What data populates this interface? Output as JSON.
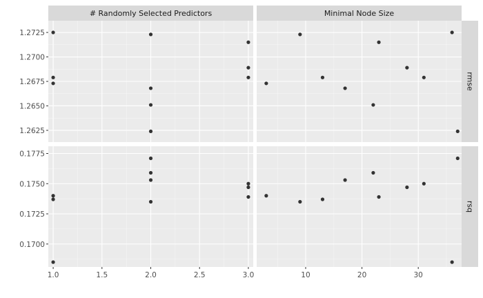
{
  "colors": {
    "panel_bg": "#ebebeb",
    "strip_bg": "#d9d9d9",
    "grid_major": "#ffffff",
    "point": "#333333"
  },
  "chart_data": {
    "type": "scatter",
    "grid": true,
    "legend": "none",
    "columns": [
      {
        "strip": "# Randomly Selected Predictors",
        "xlim": [
          0.95,
          3.05
        ],
        "xticks": [
          1.0,
          1.5,
          2.0,
          2.5,
          3.0
        ],
        "xtick_labels": [
          "1.0",
          "1.5",
          "2.0",
          "2.5",
          "3.0"
        ]
      },
      {
        "strip": "Minimal Node Size",
        "xlim": [
          1.3,
          37.7
        ],
        "xticks": [
          10,
          20,
          30
        ],
        "xtick_labels": [
          "10",
          "20",
          "30"
        ]
      }
    ],
    "rows": [
      {
        "strip": "rmse",
        "ylim": [
          1.2613,
          1.2737
        ],
        "yticks": [
          1.2625,
          1.265,
          1.2675,
          1.27,
          1.2725
        ],
        "ytick_labels": [
          "1.2625",
          "1.2650",
          "1.2675",
          "1.2700",
          "1.2725"
        ]
      },
      {
        "strip": "rsq",
        "ylim": [
          0.1681,
          0.1781
        ],
        "yticks": [
          0.17,
          0.1725,
          0.175,
          0.1775
        ],
        "ytick_labels": [
          "0.1700",
          "0.1725",
          "0.1750",
          "0.1775"
        ]
      }
    ],
    "panels": [
      {
        "row": 0,
        "col": 0,
        "points": [
          {
            "x": 1,
            "y": 1.2725
          },
          {
            "x": 1,
            "y": 1.2679
          },
          {
            "x": 1,
            "y": 1.2673
          },
          {
            "x": 2,
            "y": 1.2723
          },
          {
            "x": 2,
            "y": 1.2668
          },
          {
            "x": 2,
            "y": 1.2651
          },
          {
            "x": 2,
            "y": 1.2624
          },
          {
            "x": 3,
            "y": 1.2715
          },
          {
            "x": 3,
            "y": 1.2689
          },
          {
            "x": 3,
            "y": 1.2679
          }
        ]
      },
      {
        "row": 0,
        "col": 1,
        "points": [
          {
            "x": 3,
            "y": 1.2673
          },
          {
            "x": 9,
            "y": 1.2723
          },
          {
            "x": 13,
            "y": 1.2679
          },
          {
            "x": 17,
            "y": 1.2668
          },
          {
            "x": 22,
            "y": 1.2651
          },
          {
            "x": 23,
            "y": 1.2715
          },
          {
            "x": 28,
            "y": 1.2689
          },
          {
            "x": 31,
            "y": 1.2679
          },
          {
            "x": 36,
            "y": 1.2725
          },
          {
            "x": 37,
            "y": 1.2624
          }
        ]
      },
      {
        "row": 1,
        "col": 0,
        "points": [
          {
            "x": 1,
            "y": 0.174
          },
          {
            "x": 1,
            "y": 0.1737
          },
          {
            "x": 1,
            "y": 0.1685
          },
          {
            "x": 2,
            "y": 0.1771
          },
          {
            "x": 2,
            "y": 0.1759
          },
          {
            "x": 2,
            "y": 0.1753
          },
          {
            "x": 2,
            "y": 0.1735
          },
          {
            "x": 3,
            "y": 0.175
          },
          {
            "x": 3,
            "y": 0.1747
          },
          {
            "x": 3,
            "y": 0.1739
          }
        ]
      },
      {
        "row": 1,
        "col": 1,
        "points": [
          {
            "x": 3,
            "y": 0.174
          },
          {
            "x": 9,
            "y": 0.1735
          },
          {
            "x": 13,
            "y": 0.1737
          },
          {
            "x": 17,
            "y": 0.1753
          },
          {
            "x": 22,
            "y": 0.1759
          },
          {
            "x": 23,
            "y": 0.1739
          },
          {
            "x": 28,
            "y": 0.1747
          },
          {
            "x": 31,
            "y": 0.175
          },
          {
            "x": 36,
            "y": 0.1685
          },
          {
            "x": 37,
            "y": 0.1771
          }
        ]
      }
    ]
  }
}
